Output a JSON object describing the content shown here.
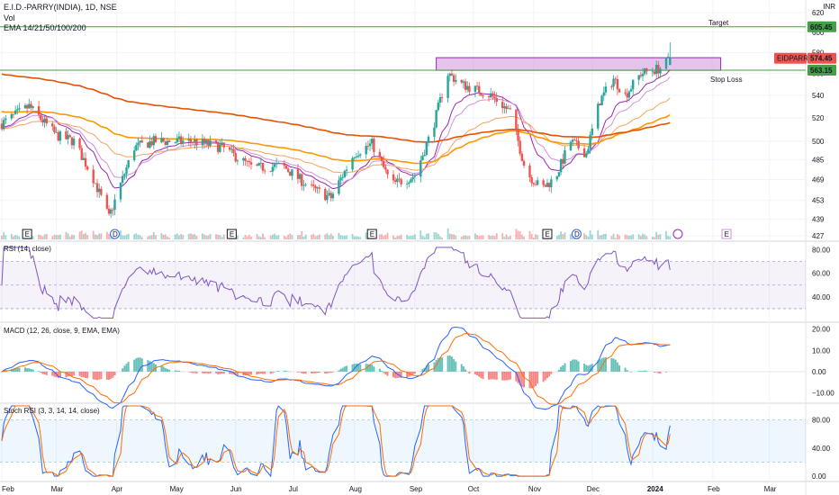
{
  "header": {
    "symbol_line": "E.I.D.-PARRY(INDIA), 1D, NSE",
    "vol_label": "Vol",
    "ema_label": "EMA 14/21/50/100/200",
    "currency": "INR"
  },
  "price_panel": {
    "ticks": [
      620,
      600,
      580,
      560,
      540,
      520,
      500,
      485,
      469,
      453,
      439,
      427
    ],
    "ticker_tag": "EIDPARRY",
    "last_price": "574.45",
    "target_value": "605.45",
    "target_label": "Target",
    "stop_value": "563.15",
    "stop_label": "Stop Loss",
    "event_markers": [
      "E",
      "D",
      "E",
      "E",
      "E",
      "D",
      "E"
    ]
  },
  "rsi_panel": {
    "title": "RSI (14, close)",
    "ticks": [
      "80.00",
      "60.00",
      "40.00"
    ]
  },
  "macd_panel": {
    "title": "MACD (12, 26, close, 9, EMA, EMA)",
    "ticks": [
      "20.00",
      "10.00",
      "0.00",
      "−10.00"
    ]
  },
  "stoch_panel": {
    "title": "Stoch RSI (3, 3, 14, 14, close)",
    "ticks": [
      "80.00",
      "40.00",
      "0.00"
    ]
  },
  "time_axis": {
    "labels": [
      "Feb",
      "Mar",
      "Apr",
      "May",
      "Jun",
      "Jul",
      "Aug",
      "Sep",
      "Oct",
      "Nov",
      "Dec",
      "2024",
      "Feb",
      "Mar"
    ]
  },
  "chart_data": {
    "type": "candlestick",
    "title": "E.I.D.-PARRY(INDIA), 1D, NSE",
    "currency": "INR",
    "price_scale": "log",
    "price_range": [
      427,
      620
    ],
    "x_range": [
      "2023-02-01",
      "2024-03-15"
    ],
    "price_path": [
      {
        "date": "2023-02-01",
        "close": 515
      },
      {
        "date": "2023-02-15",
        "close": 530
      },
      {
        "date": "2023-03-01",
        "close": 505
      },
      {
        "date": "2023-03-10",
        "close": 500
      },
      {
        "date": "2023-03-20",
        "close": 470
      },
      {
        "date": "2023-03-28",
        "close": 440
      },
      {
        "date": "2023-04-10",
        "close": 495
      },
      {
        "date": "2023-04-20",
        "close": 500
      },
      {
        "date": "2023-05-10",
        "close": 500
      },
      {
        "date": "2023-05-25",
        "close": 495
      },
      {
        "date": "2023-06-10",
        "close": 478
      },
      {
        "date": "2023-06-25",
        "close": 480
      },
      {
        "date": "2023-07-10",
        "close": 462
      },
      {
        "date": "2023-07-20",
        "close": 455
      },
      {
        "date": "2023-08-01",
        "close": 490
      },
      {
        "date": "2023-08-10",
        "close": 498
      },
      {
        "date": "2023-08-20",
        "close": 465
      },
      {
        "date": "2023-09-01",
        "close": 472
      },
      {
        "date": "2023-09-10",
        "close": 510
      },
      {
        "date": "2023-09-18",
        "close": 560
      },
      {
        "date": "2023-09-25",
        "close": 550
      },
      {
        "date": "2023-10-10",
        "close": 540
      },
      {
        "date": "2023-10-20",
        "close": 525
      },
      {
        "date": "2023-10-28",
        "close": 475
      },
      {
        "date": "2023-11-05",
        "close": 462
      },
      {
        "date": "2023-11-12",
        "close": 470
      },
      {
        "date": "2023-11-20",
        "close": 500
      },
      {
        "date": "2023-11-28",
        "close": 490
      },
      {
        "date": "2023-12-05",
        "close": 535
      },
      {
        "date": "2023-12-12",
        "close": 555
      },
      {
        "date": "2023-12-18",
        "close": 540
      },
      {
        "date": "2023-12-26",
        "close": 560
      },
      {
        "date": "2024-01-05",
        "close": 565
      },
      {
        "date": "2024-01-10",
        "close": 574.45
      }
    ],
    "ema_series": [
      {
        "name": "EMA 14",
        "color": "#9c27b0"
      },
      {
        "name": "EMA 21",
        "color": "#ce93d8"
      },
      {
        "name": "EMA 50",
        "color": "#f7a35c"
      },
      {
        "name": "EMA 100",
        "color": "#ff9800"
      },
      {
        "name": "EMA 200",
        "color": "#e65100"
      }
    ],
    "horizontal_levels": [
      {
        "label": "Target",
        "value": 605.45,
        "color": "#43a047"
      },
      {
        "label": "Stop Loss",
        "value": 563.15,
        "color": "#43a047"
      }
    ],
    "resistance_zone": {
      "low": 563,
      "high": 575,
      "from": "2023-09-12",
      "to": "2024-02-05",
      "color": "#ce93d8"
    },
    "indicators": {
      "rsi": {
        "range": [
          20,
          85
        ],
        "bands": [
          70,
          30
        ],
        "last": 63
      },
      "macd": {
        "range": [
          -14,
          22
        ],
        "last_macd": 12.5,
        "last_signal": 12.5
      },
      "stoch_rsi": {
        "range": [
          -5,
          100
        ],
        "bands": [
          80,
          20
        ],
        "last_k": 72,
        "last_d": 60
      }
    },
    "colors": {
      "up": "#26a69a",
      "down": "#ef5350",
      "rsi": "#7e57c2",
      "macd": "#2962ff",
      "signal": "#ff6d00"
    }
  }
}
